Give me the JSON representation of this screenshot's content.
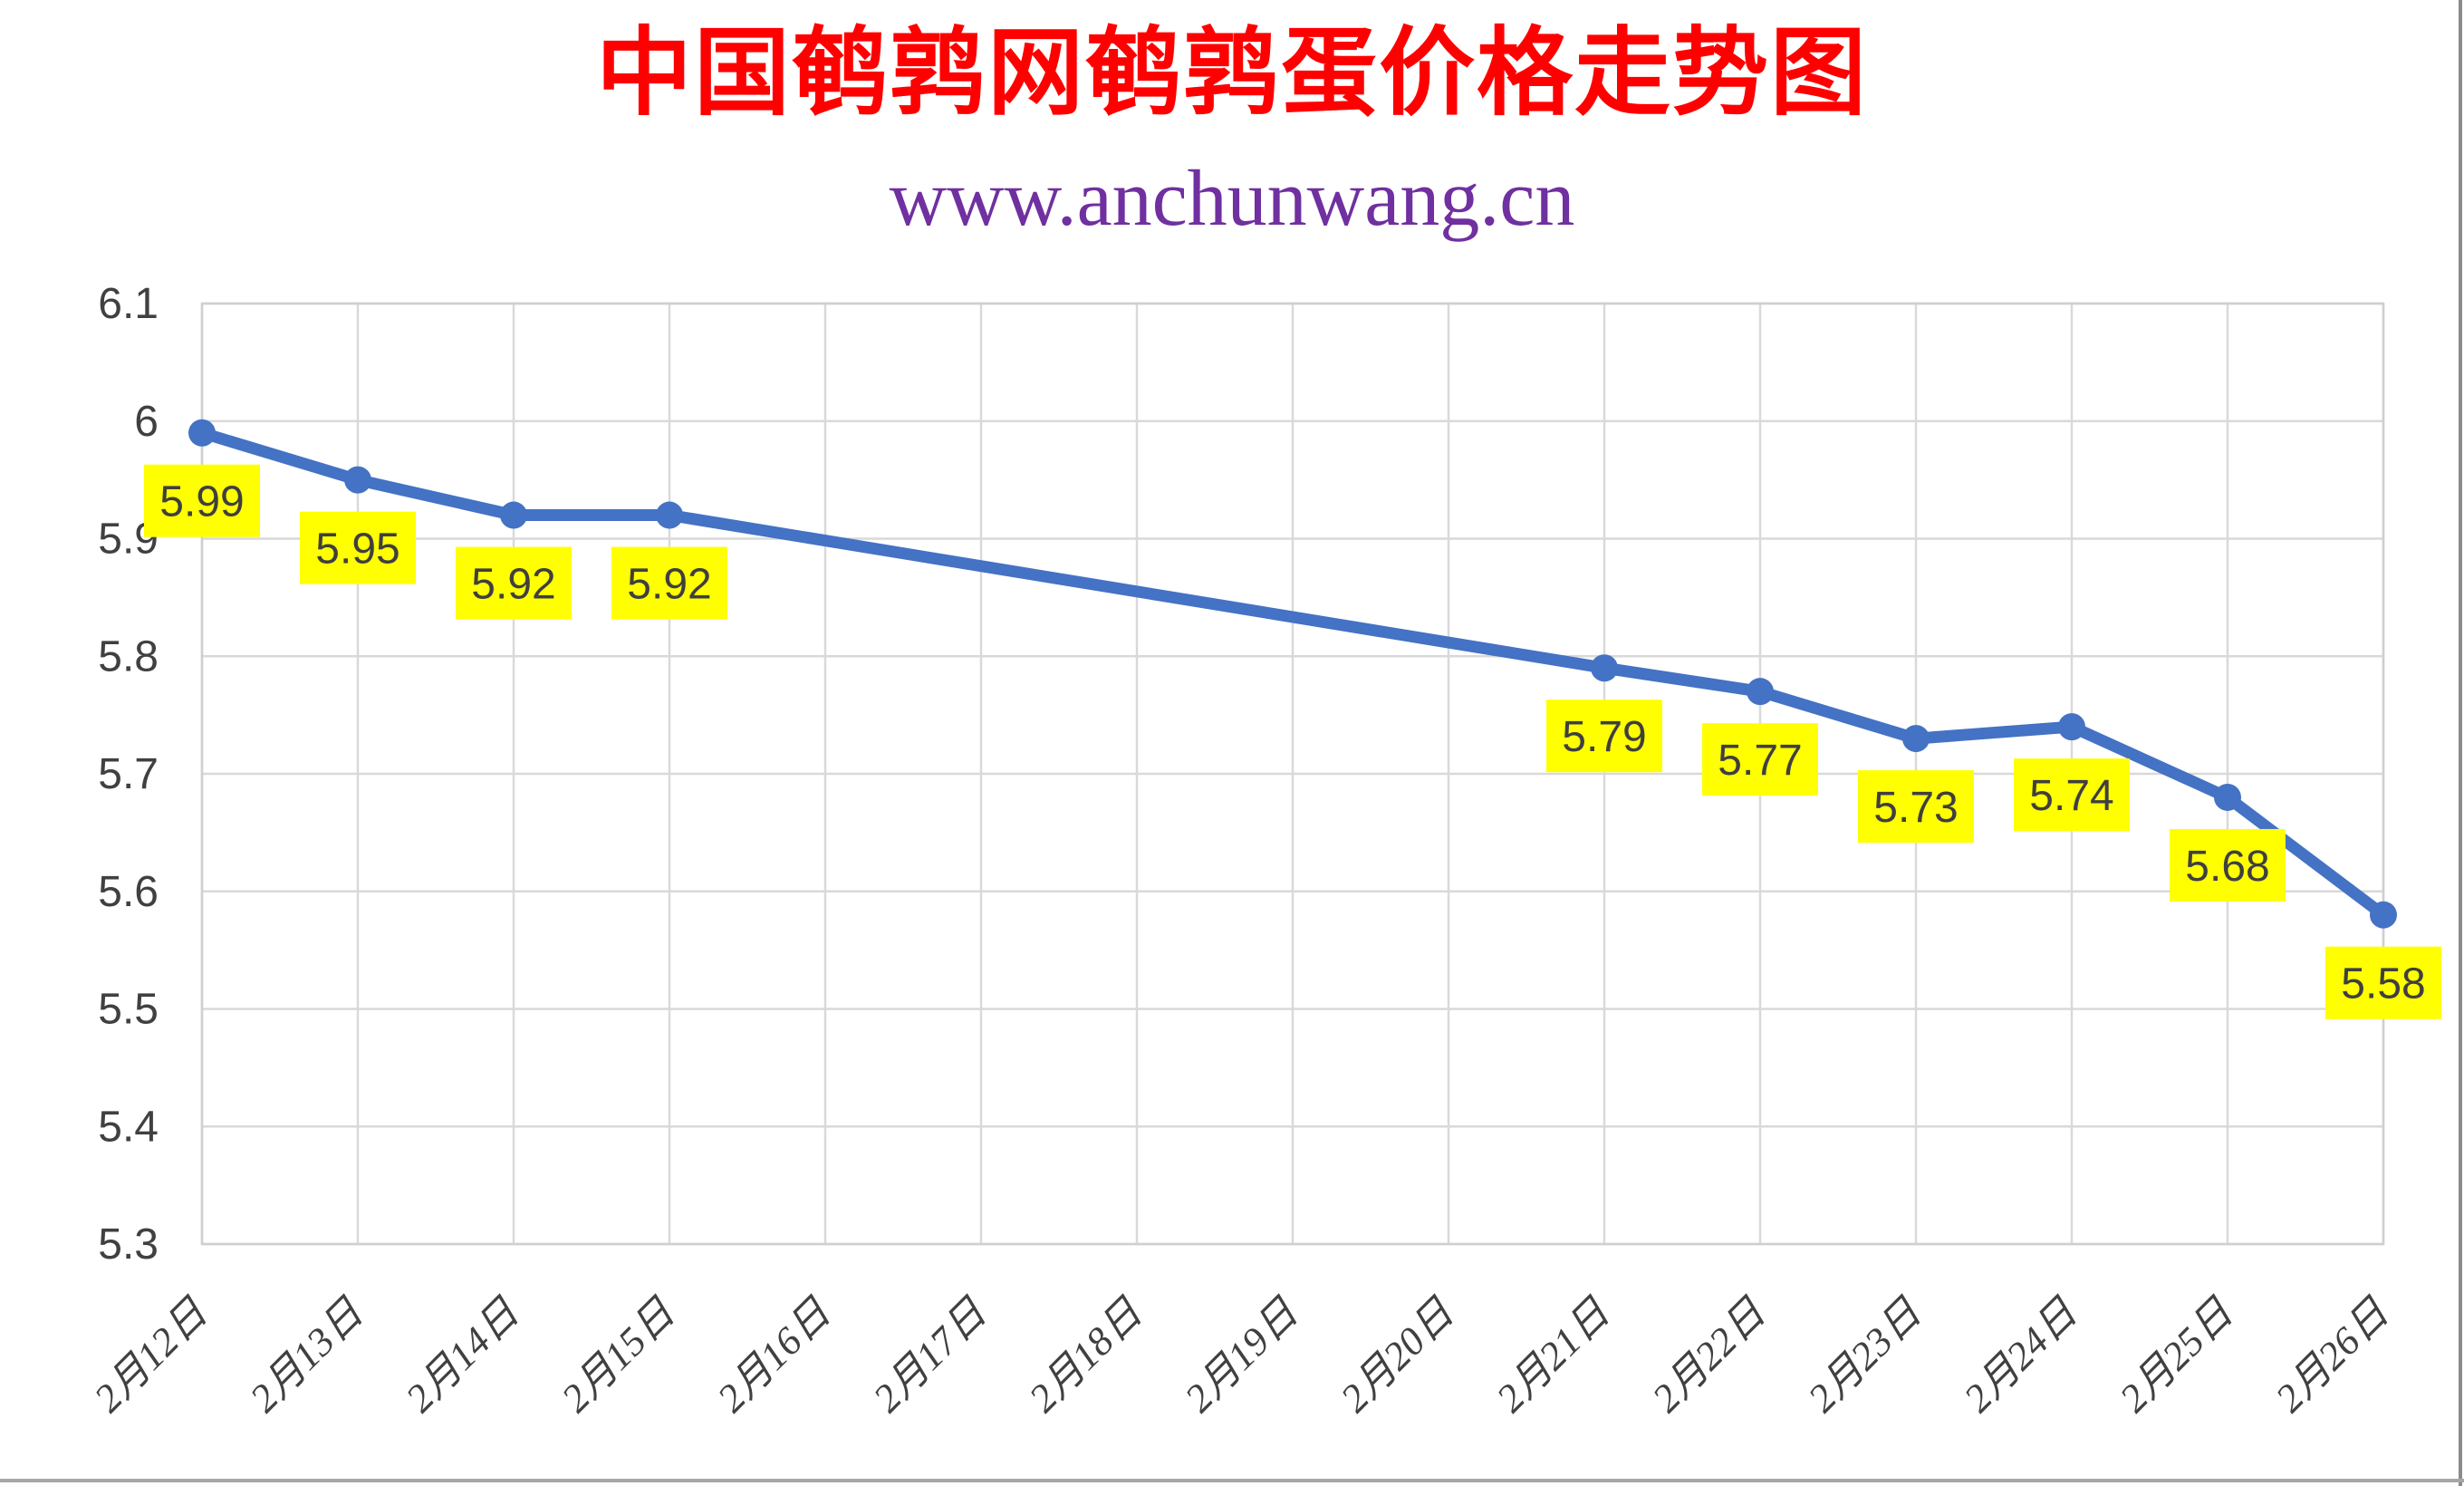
{
  "page": {
    "title": "中国鹌鹑网鹌鹑蛋价格走势图",
    "subtitle": "www.anchunwang.cn"
  },
  "chart_data": {
    "type": "line",
    "title": "中国鹌鹑网鹌鹑蛋价格走势图",
    "subtitle": "www.anchunwang.cn",
    "categories": [
      "2月12日",
      "2月13日",
      "2月14日",
      "2月15日",
      "2月16日",
      "2月17日",
      "2月18日",
      "2月19日",
      "2月20日",
      "2月21日",
      "2月22日",
      "2月23日",
      "2月24日",
      "2月25日",
      "2月26日"
    ],
    "values": [
      5.99,
      5.95,
      5.92,
      5.92,
      null,
      null,
      null,
      null,
      null,
      5.79,
      5.77,
      5.73,
      5.74,
      5.68,
      5.58
    ],
    "data_labels": [
      "5.99",
      "5.95",
      "5.92",
      "5.92",
      null,
      null,
      null,
      null,
      null,
      "5.79",
      "5.77",
      "5.73",
      "5.74",
      "5.68",
      "5.58"
    ],
    "xlabel": "",
    "ylabel": "",
    "ylim": [
      5.3,
      6.1
    ],
    "ytick_step": 0.1,
    "ytick_labels": [
      "6.1",
      "6",
      "5.9",
      "5.8",
      "5.7",
      "5.6",
      "5.5",
      "5.4",
      "5.3"
    ],
    "grid": true,
    "legend_position": "none",
    "colors": {
      "line": "#4472C4",
      "marker": "#4472C4",
      "label_bg": "#FFFF00",
      "label_text": "#3F3F3F",
      "grid": "#D9D9D9",
      "plot_border": "#CFCFCF",
      "axis_text": "#404040",
      "title": "#FF0000",
      "subtitle": "#7030A0"
    }
  }
}
